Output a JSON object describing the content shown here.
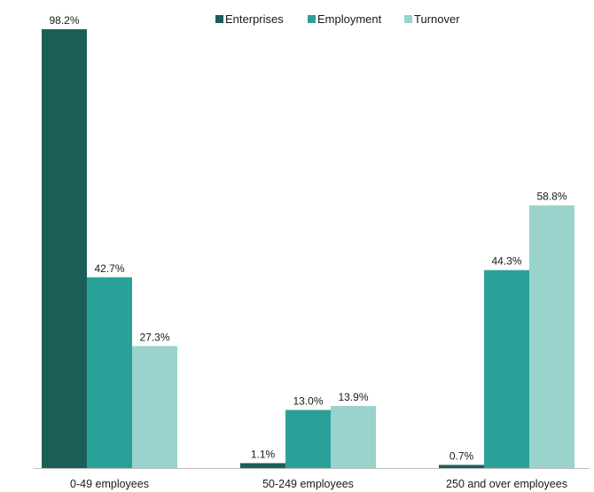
{
  "chart_data": {
    "type": "bar",
    "title": "",
    "xlabel": "",
    "ylabel": "",
    "ylim": [
      0,
      100
    ],
    "grid": false,
    "legend_position": "top-center",
    "categories": [
      "0-49 employees",
      "50-249 employees",
      "250 and over employees"
    ],
    "series": [
      {
        "name": "Enterprises",
        "color": "#1b5e57",
        "values": [
          98.2,
          1.1,
          0.7
        ],
        "labels": [
          "98.2%",
          "1.1%",
          "0.7%"
        ]
      },
      {
        "name": "Employment",
        "color": "#2aa198",
        "values": [
          42.7,
          13.0,
          44.3
        ],
        "labels": [
          "42.7%",
          "13.0%",
          "44.3%"
        ]
      },
      {
        "name": "Turnover",
        "color": "#99d3cb",
        "values": [
          27.3,
          13.9,
          58.8
        ],
        "labels": [
          "27.3%",
          "13.9%",
          "58.8%"
        ]
      }
    ],
    "axis_color": "#bfbfbf"
  }
}
